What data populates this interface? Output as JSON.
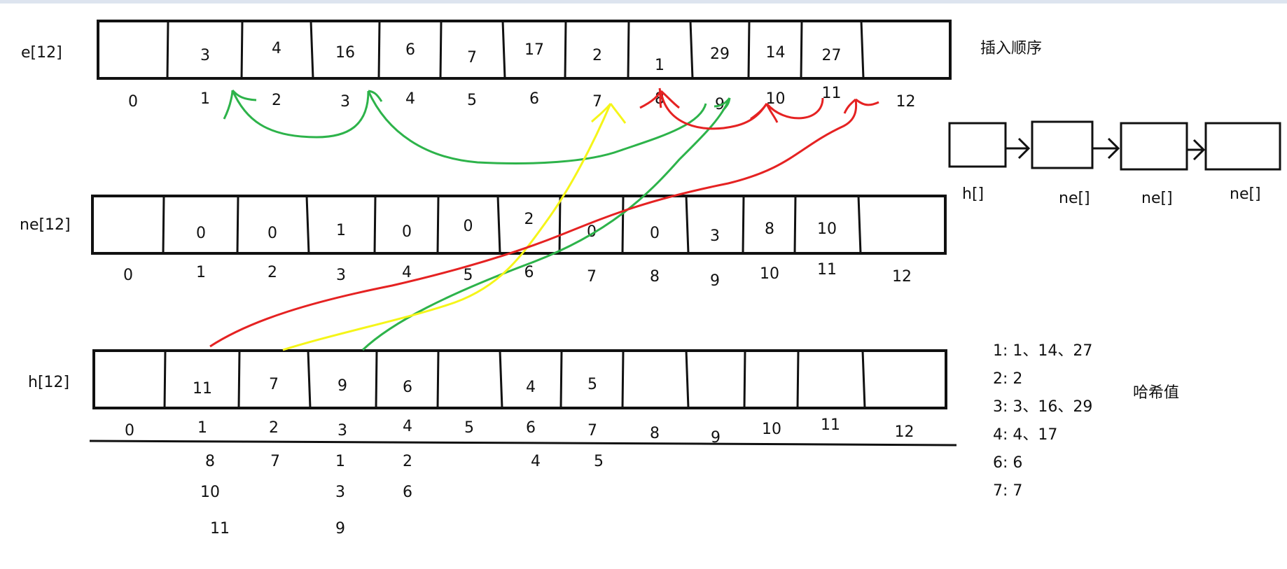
{
  "arrays": {
    "e": {
      "label": "e[12]",
      "values": [
        "",
        "3",
        "4",
        "16",
        "6",
        "7",
        "17",
        "2",
        "1",
        "29",
        "14",
        "27",
        ""
      ],
      "indices": [
        "0",
        "1",
        "2",
        "3",
        "4",
        "5",
        "6",
        "7",
        "8",
        "9",
        "10",
        "11",
        "12"
      ]
    },
    "ne": {
      "label": "ne[12]",
      "values": [
        "",
        "0",
        "0",
        "1",
        "0",
        "0",
        "2",
        "0",
        "0",
        "3",
        "8",
        "10",
        ""
      ],
      "indices": [
        "0",
        "1",
        "2",
        "3",
        "4",
        "5",
        "6",
        "7",
        "8",
        "9",
        "10",
        "11",
        "12"
      ]
    },
    "h": {
      "label": "h[12]",
      "values": [
        "",
        "11",
        "7",
        "9",
        "6",
        "",
        "4",
        "5",
        "",
        "",
        "",
        "",
        ""
      ],
      "indices": [
        "0",
        "1",
        "2",
        "3",
        "4",
        "5",
        "6",
        "7",
        "8",
        "9",
        "10",
        "11",
        "12"
      ]
    }
  },
  "h_chains": [
    {
      "index": "1",
      "items": [
        "8",
        "10",
        "11"
      ]
    },
    {
      "index": "2",
      "items": [
        "7"
      ]
    },
    {
      "index": "3",
      "items": [
        "1",
        "3",
        "9"
      ]
    },
    {
      "index": "4",
      "items": [
        "2",
        "6"
      ]
    },
    {
      "index": "6",
      "items": [
        "4"
      ]
    },
    {
      "index": "7",
      "items": [
        "5"
      ]
    }
  ],
  "insert_order_label": "插入顺序",
  "hash_label": "哈希值",
  "hash_groups": [
    "1: 1、14、27",
    "2: 2",
    "3: 3、16、29",
    "4: 4、17",
    "6: 6",
    "7: 7"
  ],
  "linked_list_labels": [
    "h[]",
    "ne[]",
    "ne[]",
    "ne[]"
  ],
  "colors": {
    "green": "#2db34a",
    "red": "#e52222",
    "yellow": "#f5f519",
    "black": "#111111",
    "border": "#dde4ef"
  }
}
